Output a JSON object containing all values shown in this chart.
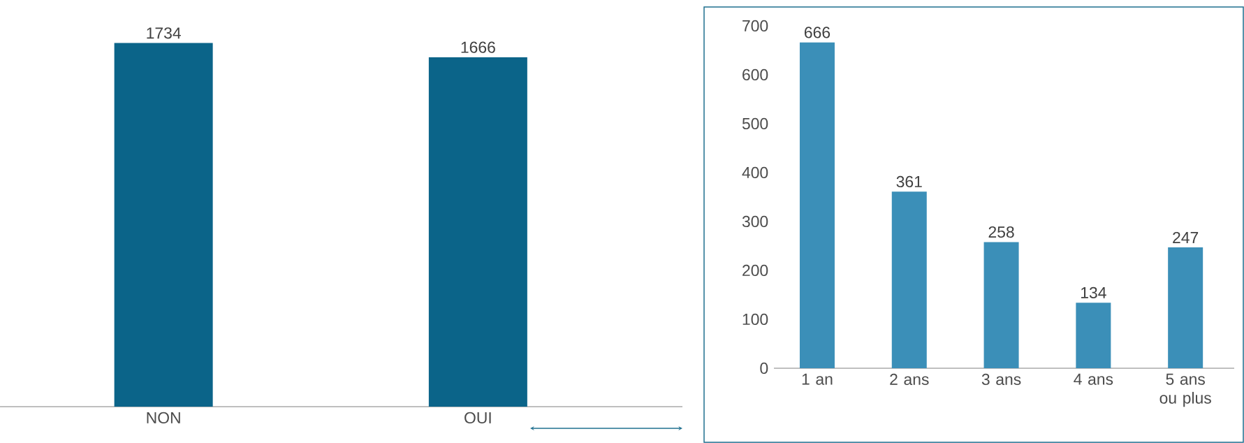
{
  "chart_data": [
    {
      "type": "bar",
      "categories": [
        "NON",
        "OUI"
      ],
      "values": [
        1734,
        1666
      ],
      "color": "#0b6489",
      "data_labels": true,
      "tick_labels": "x"
    },
    {
      "type": "bar",
      "categories": [
        "1 an",
        "2 ans",
        "3 ans",
        "4 ans",
        "5 ans ou plus"
      ],
      "values": [
        666,
        361,
        258,
        134,
        247
      ],
      "color": "#3b8fb8",
      "data_labels": true,
      "ylim": [
        0,
        700
      ],
      "yticks": [
        0,
        100,
        200,
        300,
        400,
        500,
        600,
        700
      ]
    }
  ]
}
